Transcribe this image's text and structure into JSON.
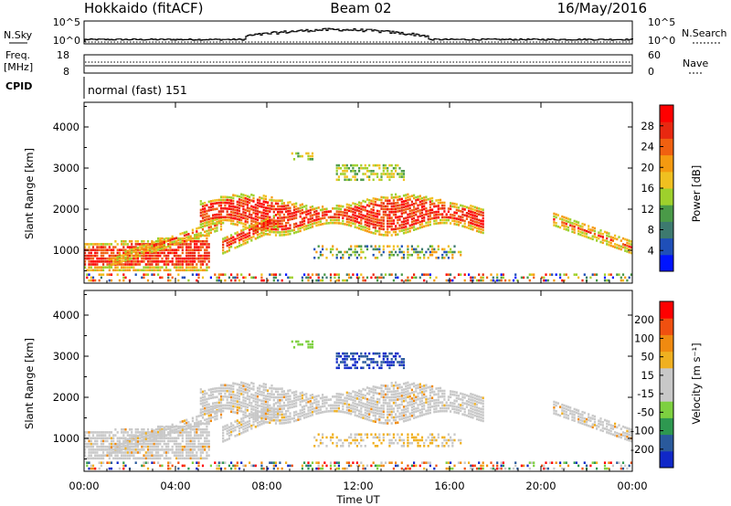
{
  "header": {
    "title_left": "Hokkaido (fitACF)",
    "title_center": "Beam 02",
    "title_right": "16/May/2016"
  },
  "top_panels": {
    "nsky_label": "N.Sky",
    "nsky_ticks": [
      "10^5",
      "10^0"
    ],
    "nsearch_label": "N.Search",
    "nsearch_ticks": [
      "10^5",
      "10^0"
    ],
    "freq_label_1": "Freq.",
    "freq_label_2": "[MHz]",
    "freq_ticks": [
      "18",
      "8"
    ],
    "nave_label": "Nave",
    "nave_ticks": [
      "60",
      "0"
    ],
    "cpid_label": "CPID",
    "cpid_text": "normal (fast) 151"
  },
  "chart_data": [
    {
      "type": "heatmap",
      "name": "power",
      "ylabel": "Slant Range [km]",
      "y_ticks": [
        "1000",
        "2000",
        "3000",
        "4000"
      ],
      "ylim": [
        200,
        4600
      ],
      "colorbar_label": "Power [dB]",
      "colorbar_ticks": [
        "28",
        "24",
        "20",
        "16",
        "12",
        "8",
        "4"
      ],
      "colorbar_colors": [
        "#0014ff",
        "#1f4fb8",
        "#3d7a6f",
        "#4a9a48",
        "#9ed02c",
        "#f0c020",
        "#f59a10",
        "#f06010",
        "#e82810",
        "#ff0000"
      ]
    },
    {
      "type": "heatmap",
      "name": "velocity",
      "ylabel": "Slant Range [km]",
      "y_ticks": [
        "1000",
        "2000",
        "3000",
        "4000"
      ],
      "ylim": [
        200,
        4600
      ],
      "colorbar_label": "Velocity [m s⁻¹]",
      "colorbar_ticks": [
        "200",
        "100",
        "50",
        "15",
        "-15",
        "-50",
        "-100",
        "-200"
      ],
      "colorbar_colors": [
        "#1028c8",
        "#2a5a9c",
        "#2e9850",
        "#7dd040",
        "#c8c8c8",
        "#c8c8c8",
        "#f0b020",
        "#f08a10",
        "#f05010",
        "#ff0000"
      ],
      "xlabel": "Time UT",
      "x_ticks": [
        "00:00",
        "04:00",
        "08:00",
        "12:00",
        "16:00",
        "20:00",
        "00:00"
      ]
    }
  ],
  "colors": {
    "ground_scatter": "#c8c8c8"
  }
}
